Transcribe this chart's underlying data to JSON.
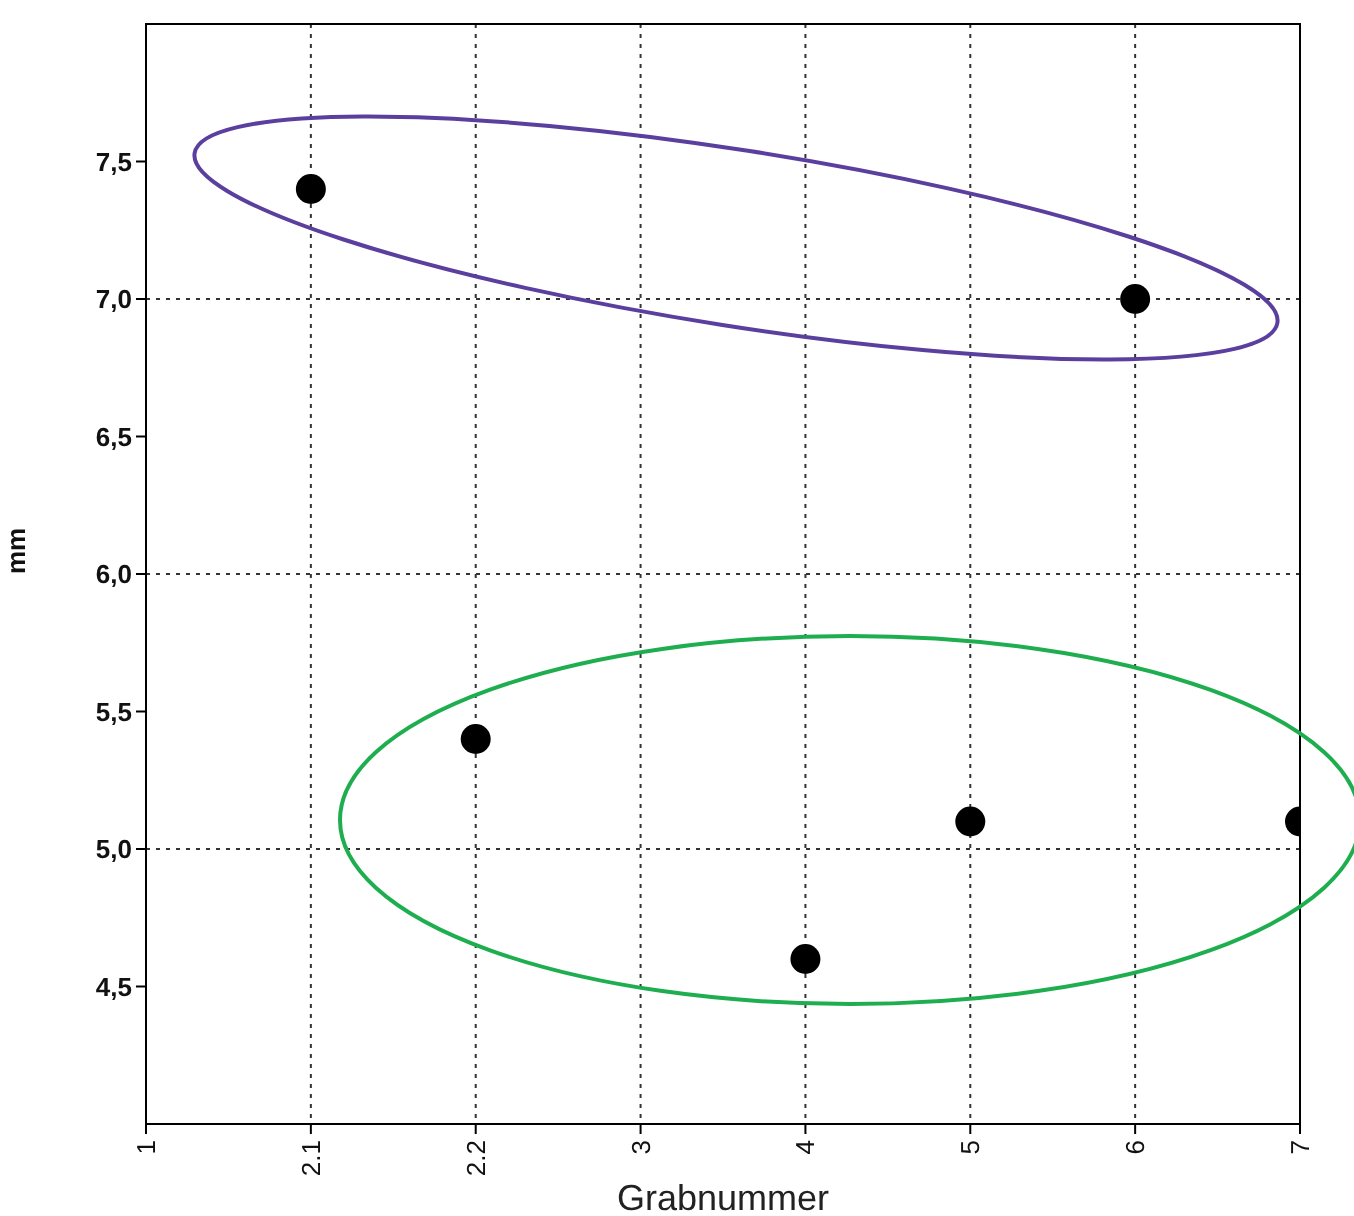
{
  "chart_data": {
    "type": "scatter",
    "xlabel": "Grabnummer",
    "ylabel": "mm",
    "categories": [
      "1",
      "2.1",
      "2.2",
      "3",
      "4",
      "5",
      "6",
      "7"
    ],
    "series": [
      {
        "color": "#000000",
        "values": [
          null,
          7.4,
          5.4,
          null,
          4.6,
          5.1,
          7.0,
          5.1
        ]
      }
    ],
    "ylim": [
      4.0,
      8.0
    ],
    "yticks": [
      {
        "value": 4.5,
        "label": "4,5"
      },
      {
        "value": 5.0,
        "label": "5,0"
      },
      {
        "value": 5.5,
        "label": "5,5"
      },
      {
        "value": 6.0,
        "label": "6,0"
      },
      {
        "value": 6.5,
        "label": "6,5"
      },
      {
        "value": 7.0,
        "label": "7,0"
      },
      {
        "value": 7.5,
        "label": "7,5"
      }
    ],
    "grid": "x",
    "marker": "circle",
    "ref_lines": [
      {
        "axis": "y",
        "value": 5.0,
        "color": "#333333",
        "line_style": "dotted"
      },
      {
        "axis": "y",
        "value": 6.0,
        "color": "#333333",
        "line_style": "dotted"
      },
      {
        "axis": "y",
        "value": 7.0,
        "color": "#333333",
        "line_style": "dotted"
      }
    ]
  }
}
